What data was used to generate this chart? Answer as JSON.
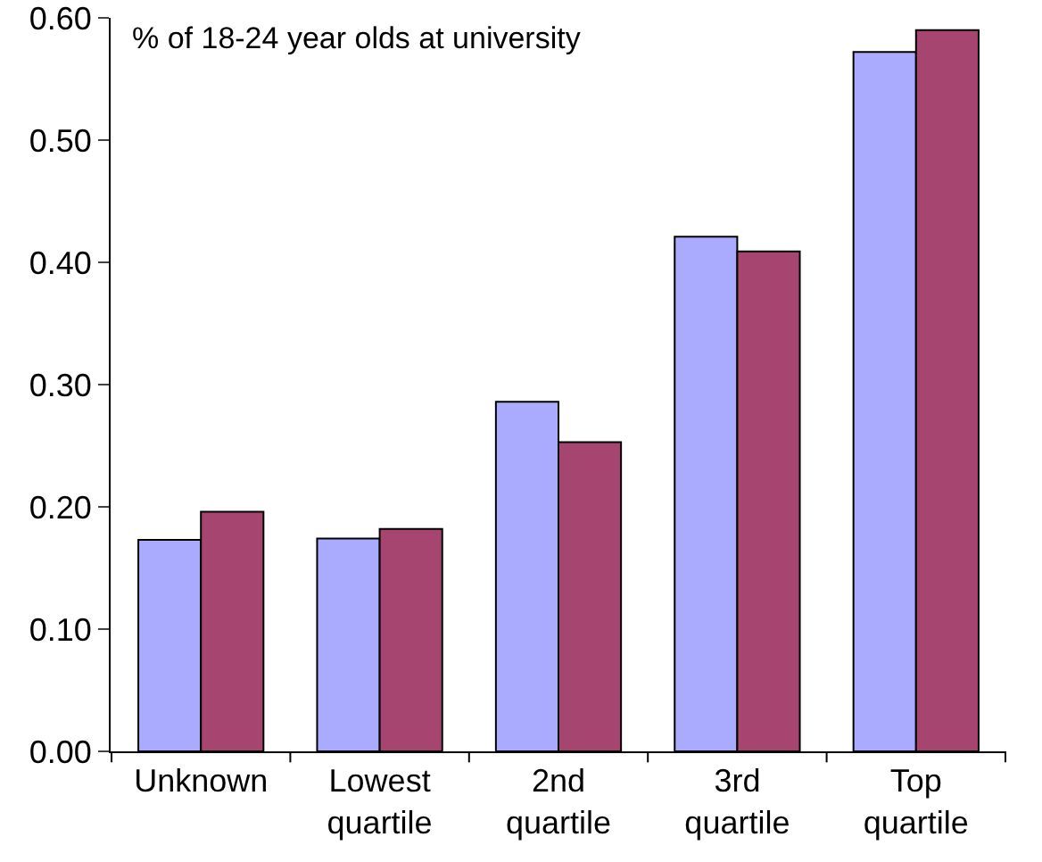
{
  "chart_data": {
    "type": "bar",
    "ylabel": "% of 18-24 year olds at university",
    "categories": [
      "Unknown",
      "Lowest quartile",
      "2nd quartile",
      "3rd quartile",
      "Top quartile"
    ],
    "series": [
      {
        "color": "#aaaaff",
        "values": [
          0.173,
          0.174,
          0.286,
          0.421,
          0.572
        ]
      },
      {
        "color": "#a64570",
        "values": [
          0.196,
          0.182,
          0.253,
          0.409,
          0.59
        ]
      }
    ],
    "ylim": [
      0,
      0.6
    ],
    "yticks": [
      {
        "value": 0,
        "label": "0.00"
      },
      {
        "value": 0.1,
        "label": "0.10"
      },
      {
        "value": 0.2,
        "label": "0.20"
      },
      {
        "value": 0.3,
        "label": "0.30"
      },
      {
        "value": 0.4,
        "label": "0.40"
      },
      {
        "value": 0.5,
        "label": "0.50"
      },
      {
        "value": 0.6,
        "label": "0.60"
      }
    ],
    "grid": false,
    "legend": false
  }
}
